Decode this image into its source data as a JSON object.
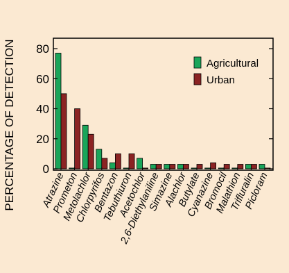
{
  "chart_data": {
    "type": "bar",
    "ylabel": "PERCENTAGE OF DETECTION",
    "ylim": [
      0,
      80
    ],
    "yticks": [
      0,
      20,
      40,
      60,
      80
    ],
    "grid": false,
    "legend_position": "top-right",
    "categories": [
      "Atrazine",
      "Prometon",
      "Metolachlor",
      "Chlorpyrifos",
      "Bentazon",
      "Tebuthiuron",
      "Acetochlor",
      "2,6-Diethylaniline",
      "Simazine",
      "Alachlor",
      "Butylate",
      "Cyanazine",
      "Bromocil",
      "Malathion",
      "Trifluralin",
      "Picloram"
    ],
    "series": [
      {
        "name": "Agricultural",
        "color": "#1aa55a",
        "values": [
          77,
          0.5,
          29,
          13,
          4,
          0.5,
          7,
          3,
          3,
          3,
          0.5,
          0.5,
          0.5,
          0.5,
          3,
          3
        ]
      },
      {
        "name": "Urban",
        "color": "#8b2323",
        "values": [
          50,
          40,
          23,
          7,
          10,
          10,
          0.5,
          3,
          3,
          3,
          3,
          4,
          3,
          3,
          3,
          0.5
        ]
      }
    ]
  }
}
